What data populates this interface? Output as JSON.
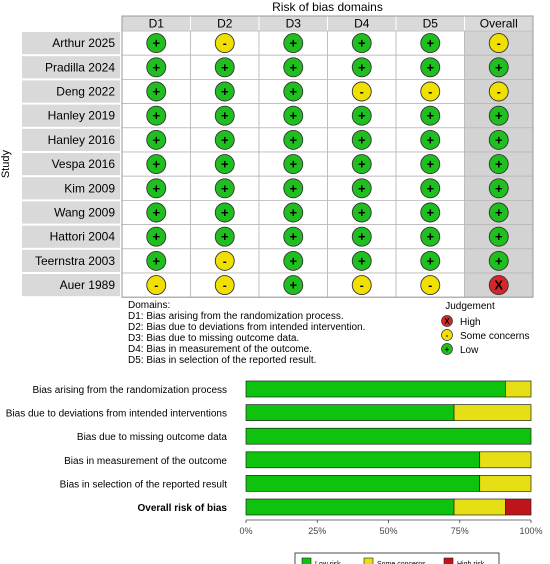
{
  "chart_data": [
    {
      "type": "table",
      "title": "Risk of bias domains",
      "ylabel": "Study",
      "columns": [
        "D1",
        "D2",
        "D3",
        "D4",
        "D5",
        "Overall"
      ],
      "rows": [
        {
          "study": "Arthur 2025",
          "judgements": [
            "+",
            "-",
            "+",
            "+",
            "+",
            "-"
          ]
        },
        {
          "study": "Pradilla 2024",
          "judgements": [
            "+",
            "+",
            "+",
            "+",
            "+",
            "+"
          ]
        },
        {
          "study": "Deng 2022",
          "judgements": [
            "+",
            "+",
            "+",
            "-",
            "-",
            "-"
          ]
        },
        {
          "study": "Hanley 2019",
          "judgements": [
            "+",
            "+",
            "+",
            "+",
            "+",
            "+"
          ]
        },
        {
          "study": "Hanley 2016",
          "judgements": [
            "+",
            "+",
            "+",
            "+",
            "+",
            "+"
          ]
        },
        {
          "study": "Vespa 2016",
          "judgements": [
            "+",
            "+",
            "+",
            "+",
            "+",
            "+"
          ]
        },
        {
          "study": "Kim 2009",
          "judgements": [
            "+",
            "+",
            "+",
            "+",
            "+",
            "+"
          ]
        },
        {
          "study": "Wang 2009",
          "judgements": [
            "+",
            "+",
            "+",
            "+",
            "+",
            "+"
          ]
        },
        {
          "study": "Hattori 2004",
          "judgements": [
            "+",
            "+",
            "+",
            "+",
            "+",
            "+"
          ]
        },
        {
          "study": "Teernstra 2003",
          "judgements": [
            "+",
            "-",
            "+",
            "+",
            "+",
            "+"
          ]
        },
        {
          "study": "Auer 1989",
          "judgements": [
            "-",
            "-",
            "+",
            "-",
            "-",
            "X"
          ]
        }
      ],
      "domains_title": "Domains:",
      "domains": [
        "D1: Bias arising from the randomization process.",
        "D2: Bias due to deviations from intended intervention.",
        "D3: Bias due to missing outcome data.",
        "D4: Bias in measurement of the outcome.",
        "D5: Bias in selection of the reported result."
      ],
      "legend_title": "Judgement",
      "legend": [
        {
          "symbol": "X",
          "label": "High",
          "color": "#d62728"
        },
        {
          "symbol": "-",
          "label": "Some concerns",
          "color": "#f0e000"
        },
        {
          "symbol": "+",
          "label": "Low",
          "color": "#1fbf1f"
        }
      ]
    },
    {
      "type": "bar",
      "orientation": "horizontal",
      "stacked": true,
      "categories": [
        "Bias arising from the randomization process",
        "Bias due to deviations from intended interventions",
        "Bias due to missing outcome data",
        "Bias in measurement of the outcome",
        "Bias in selection of the reported result",
        "Overall risk of bias"
      ],
      "series": [
        {
          "name": "Low risk",
          "color": "#0ec30e",
          "values": [
            91,
            73,
            100,
            82,
            82,
            73
          ]
        },
        {
          "name": "Some concerns",
          "color": "#e6df16",
          "values": [
            9,
            27,
            0,
            18,
            18,
            18
          ]
        },
        {
          "name": "High risk",
          "color": "#c0141b",
          "values": [
            0,
            0,
            0,
            0,
            0,
            9
          ]
        }
      ],
      "xlim": [
        0,
        100
      ],
      "xticks": [
        "0%",
        "25%",
        "50%",
        "75%",
        "100%"
      ],
      "legend_position": "bottom"
    }
  ]
}
